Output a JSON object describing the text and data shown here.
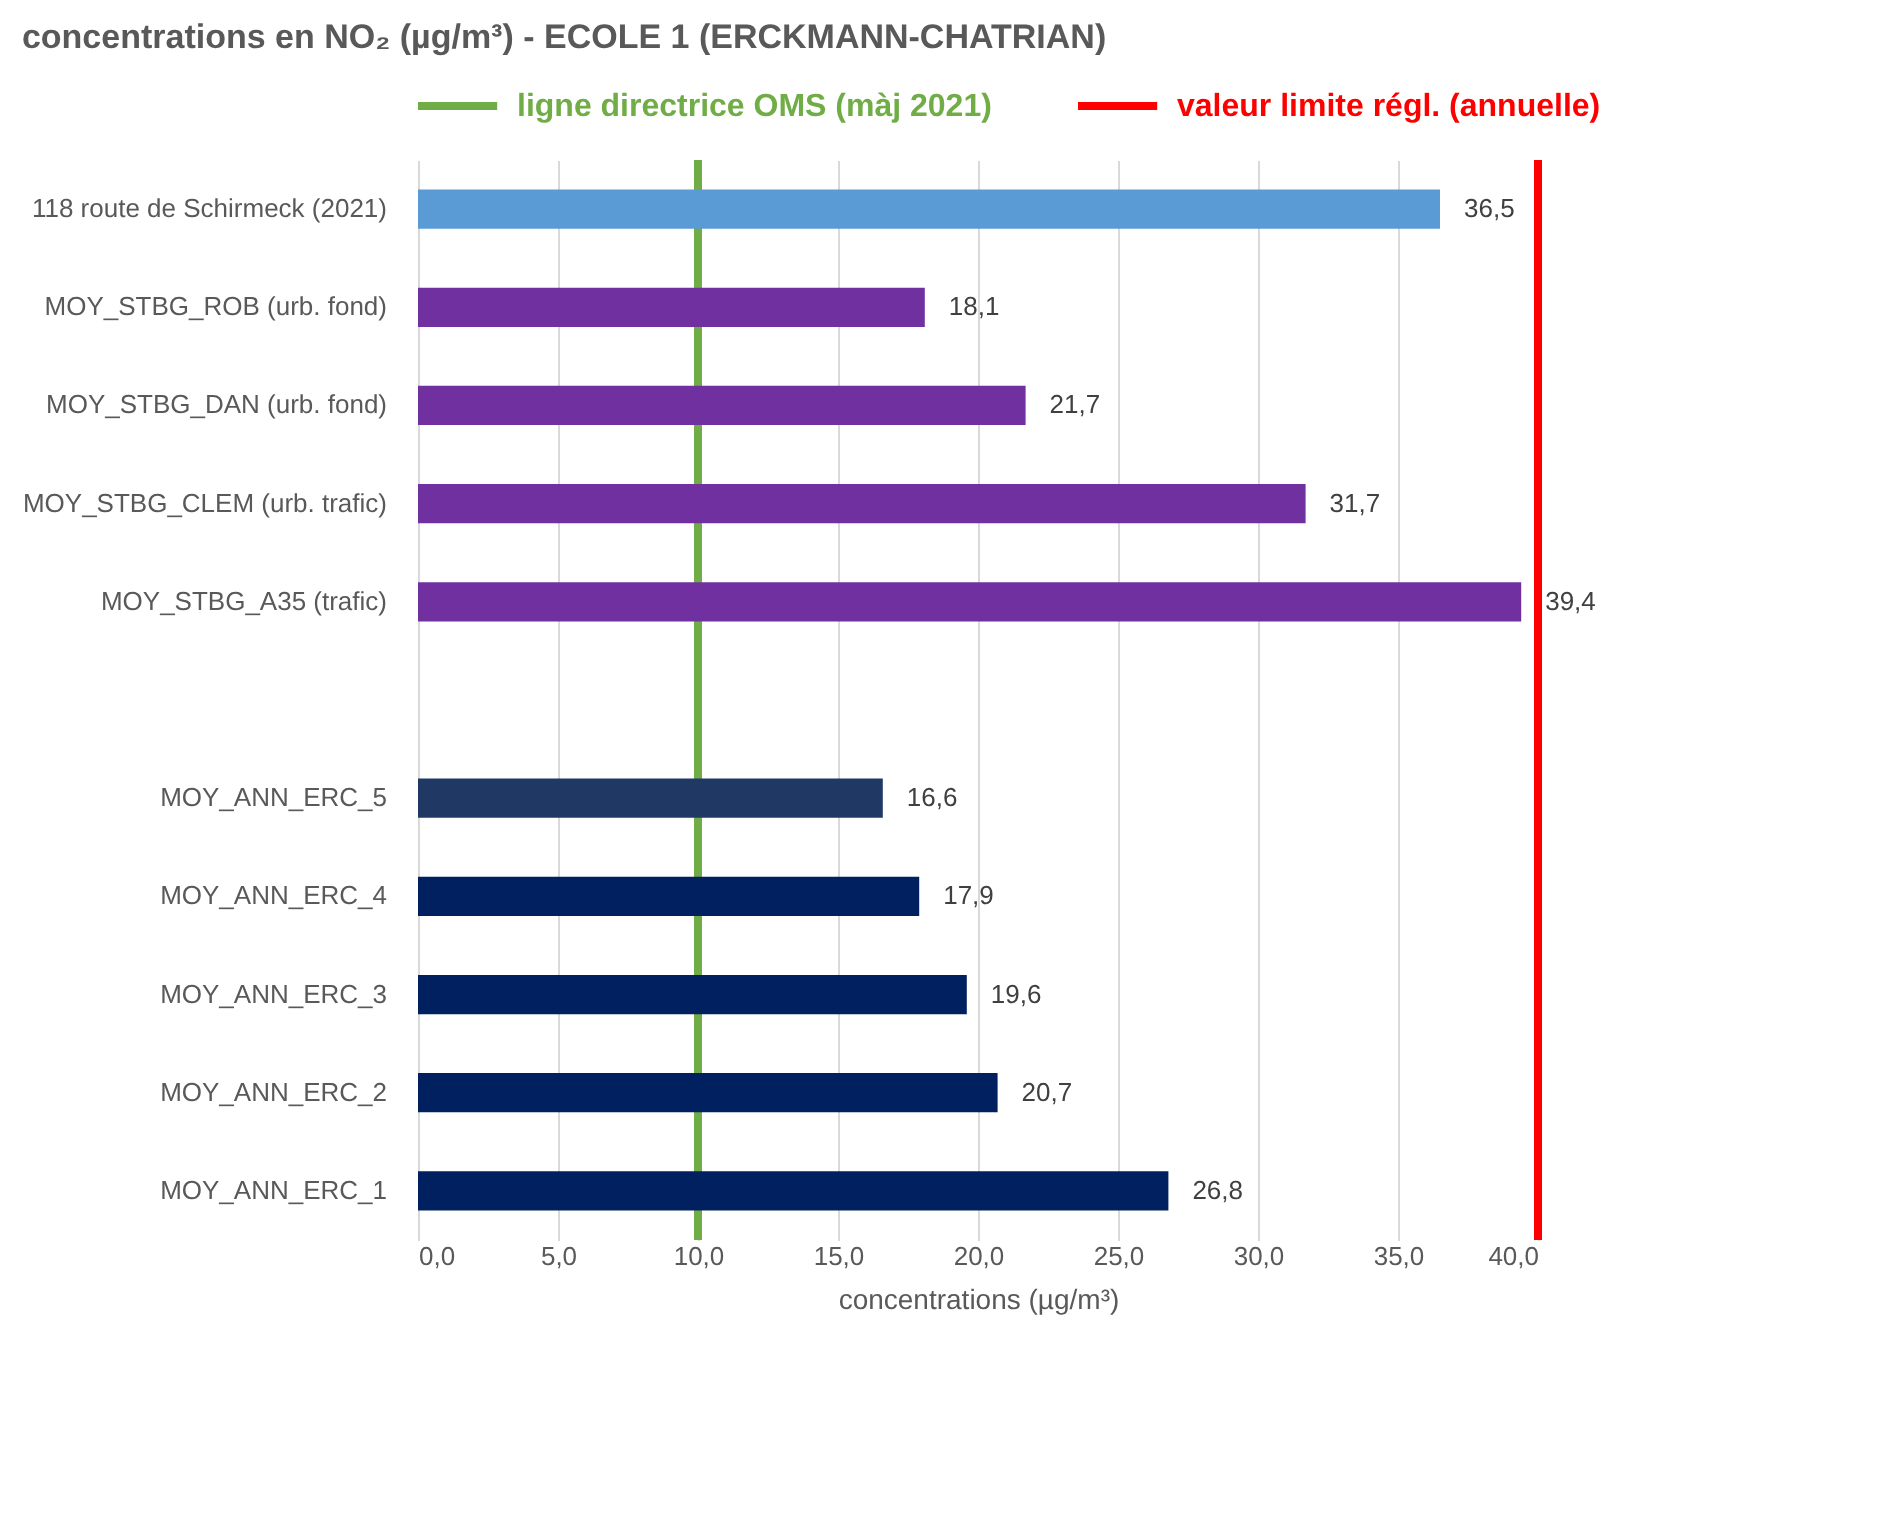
{
  "chart_data": {
    "type": "bar",
    "orientation": "horizontal",
    "title": "concentrations en NO₂ (µg/m³) - ECOLE 1 (ERCKMANN-CHATRIAN)",
    "xlabel": "concentrations (µg/m³)",
    "categories": [
      "118 route de Schirmeck (2021)",
      "MOY_STBG_ROB (urb. fond)",
      "MOY_STBG_DAN (urb. fond)",
      "MOY_STBG_CLEM (urb. trafic)",
      "MOY_STBG_A35 (trafic)",
      null,
      "MOY_ANN_ERC_5",
      "MOY_ANN_ERC_4",
      "MOY_ANN_ERC_3",
      "MOY_ANN_ERC_2",
      "MOY_ANN_ERC_1"
    ],
    "values": [
      36.5,
      18.1,
      21.7,
      31.7,
      39.4,
      null,
      16.6,
      17.9,
      19.6,
      20.7,
      26.8
    ],
    "colors": [
      "#5b9bd5",
      "#7030a0",
      "#7030a0",
      "#7030a0",
      "#7030a0",
      null,
      "#203864",
      "#002060",
      "#002060",
      "#002060",
      "#002060"
    ],
    "value_labels": [
      "36,5",
      "18,1",
      "21,7",
      "31,7",
      "39,4",
      null,
      "16,6",
      "17,9",
      "19,6",
      "20,7",
      "26,8"
    ],
    "xlim": [
      0,
      40
    ],
    "xticks": [
      {
        "value": 0,
        "label": "0,0"
      },
      {
        "value": 5,
        "label": "5,0"
      },
      {
        "value": 10,
        "label": "10,0"
      },
      {
        "value": 15,
        "label": "15,0"
      },
      {
        "value": 20,
        "label": "20,0"
      },
      {
        "value": 25,
        "label": "25,0"
      },
      {
        "value": 30,
        "label": "30,0"
      },
      {
        "value": 35,
        "label": "35,0"
      },
      {
        "value": 40,
        "label": "40,0"
      }
    ],
    "ref_lines": [
      {
        "axis": "x",
        "value": 10,
        "label": "ligne directrice OMS (màj 2021)",
        "color": "#70ad47"
      },
      {
        "axis": "x",
        "value": 40,
        "label": "valeur limite régl. (annuelle)",
        "color": "#ff0000"
      }
    ],
    "grid": "x",
    "legend": "top"
  }
}
